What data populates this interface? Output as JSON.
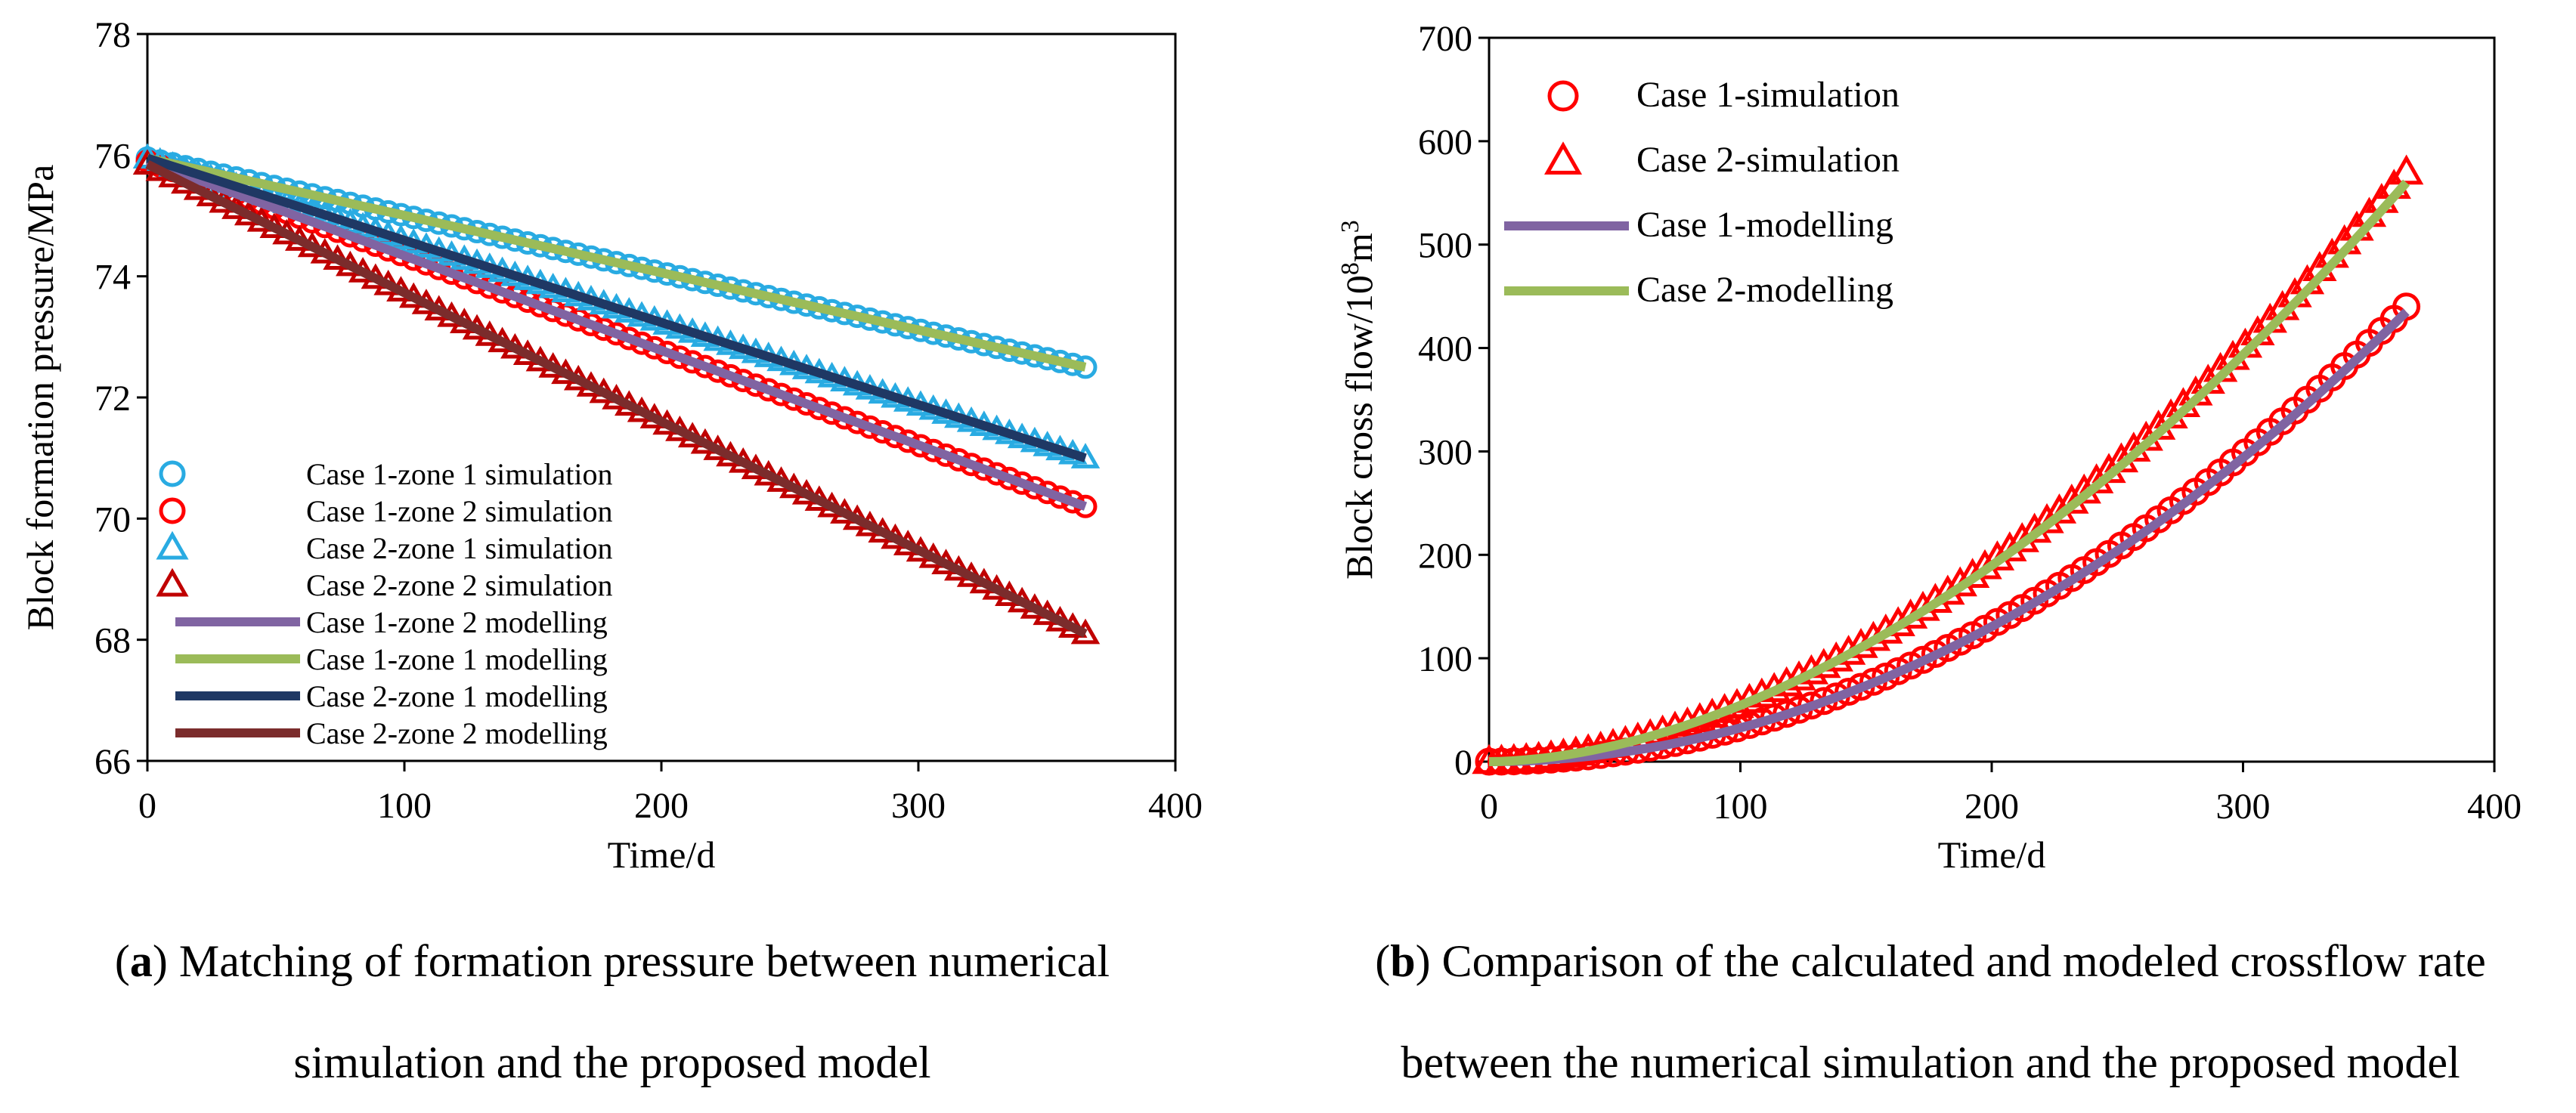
{
  "chart_data": [
    {
      "id": "a",
      "type": "line",
      "xlabel": "Time/d",
      "ylabel": "Block formation pressure/MPa",
      "xlim": [
        0,
        400
      ],
      "ylim": [
        66,
        78
      ],
      "xticks": [
        0,
        100,
        200,
        300,
        400
      ],
      "yticks": [
        66,
        68,
        70,
        72,
        74,
        76,
        78
      ],
      "legend_position": "bottom-left",
      "x_range": [
        0,
        365
      ],
      "series": [
        {
          "name": "Case 1-zone 1 simulation",
          "kind": "marker",
          "marker": "circle",
          "color": "#29ABE2",
          "start": 75.95,
          "end": 72.5,
          "curve": 0
        },
        {
          "name": "Case 1-zone 2 simulation",
          "kind": "marker",
          "marker": "circle",
          "color": "#FF0000",
          "start": 75.9,
          "end": 70.2,
          "curve": 0
        },
        {
          "name": "Case 2-zone 1 simulation",
          "kind": "marker",
          "marker": "triangle",
          "color": "#29ABE2",
          "start": 75.95,
          "end": 71.0,
          "curve": 0
        },
        {
          "name": "Case 2-zone 2 simulation",
          "kind": "marker",
          "marker": "triangle",
          "color": "#C00000",
          "start": 75.85,
          "end": 68.1,
          "curve": 0
        },
        {
          "name": "Case 1-zone 2 modelling",
          "kind": "line",
          "color": "#8064A2",
          "start": 75.9,
          "end": 70.2,
          "curve": 0
        },
        {
          "name": "Case 1-zone 1 modelling",
          "kind": "line",
          "color": "#9BBB59",
          "start": 75.95,
          "end": 72.5,
          "curve": 0
        },
        {
          "name": "Case 2-zone 1 modelling",
          "kind": "line",
          "color": "#1F3864",
          "start": 75.95,
          "end": 71.0,
          "curve": 0
        },
        {
          "name": "Case 2-zone 2 modelling",
          "kind": "line",
          "color": "#7B2C2C",
          "start": 75.85,
          "end": 68.1,
          "curve": 0
        }
      ]
    },
    {
      "id": "b",
      "type": "line",
      "xlabel": "Time/d",
      "ylabel": "Block cross flow/10",
      "ylabel_sup": "8",
      "ylabel_tail": "m",
      "ylabel_sup2": "3",
      "xlim": [
        0,
        400
      ],
      "ylim": [
        0,
        700
      ],
      "xticks": [
        0,
        100,
        200,
        300,
        400
      ],
      "yticks": [
        0,
        100,
        200,
        300,
        400,
        500,
        600,
        700
      ],
      "legend_position": "top-left",
      "x_range": [
        0,
        365
      ],
      "series": [
        {
          "name": "Case 1-simulation",
          "kind": "marker",
          "marker": "circle",
          "color": "#FF0000",
          "start": 0,
          "end": 440,
          "curve": 2
        },
        {
          "name": "Case 2-simulation",
          "kind": "marker",
          "marker": "triangle",
          "color": "#FF0000",
          "start": 0,
          "end": 570,
          "curve": 1.8
        },
        {
          "name": "Case 1-modelling",
          "kind": "line",
          "color": "#8064A2",
          "start": 0,
          "end": 435,
          "curve": 2
        },
        {
          "name": "Case 2-modelling",
          "kind": "line",
          "color": "#9BBB59",
          "start": 0,
          "end": 560,
          "curve": 1.8
        }
      ]
    }
  ],
  "captions": {
    "a": {
      "tag": "a",
      "line1": ") Matching of formation pressure between numerical",
      "line2": "simulation and the proposed model"
    },
    "b": {
      "tag": "b",
      "line1": ") Comparison of the calculated and modeled crossflow rate",
      "line2": "between the numerical simulation and the proposed model"
    }
  }
}
